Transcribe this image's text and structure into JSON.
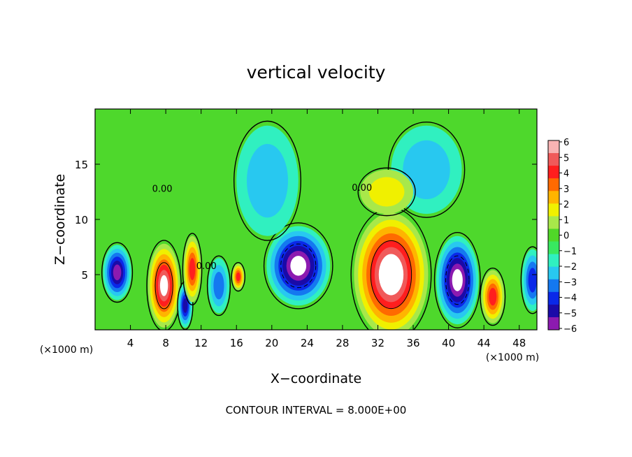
{
  "chart_data": {
    "type": "heatmap",
    "title": "vertical velocity",
    "xlabel": "X−coordinate",
    "ylabel": "Z−coordinate",
    "x_unit_left": "(×1000 m)",
    "y_unit_bottom": "(×1000 m)",
    "footer": "CONTOUR INTERVAL = 8.000E+00",
    "xlim": [
      0,
      50
    ],
    "ylim": [
      0,
      20
    ],
    "x_ticks": [
      4,
      8,
      12,
      16,
      20,
      24,
      28,
      32,
      36,
      40,
      44,
      48
    ],
    "y_ticks": [
      5,
      10,
      15
    ],
    "contour_labels": [
      {
        "text": "0.00",
        "x": 7.6,
        "y": 12.5
      },
      {
        "text": "0.00",
        "x": 12.6,
        "y": 5.5
      },
      {
        "text": "0.00",
        "x": 30.2,
        "y": 12.6
      }
    ],
    "colorbar": {
      "ticks": [
        "6",
        "5",
        "4",
        "3",
        "2",
        "1",
        "0",
        "−1",
        "−2",
        "−3",
        "−4",
        "−5",
        "−6"
      ],
      "colors": [
        "#f8b3b3",
        "#f05a5a",
        "#ff1e1e",
        "#ff6a00",
        "#ffb400",
        "#f0f000",
        "#a8e84a",
        "#50d828",
        "#38e860",
        "#30f0c0",
        "#28c8f0",
        "#1478f0",
        "#0a28e8",
        "#1a0aa8",
        "#8c1ab0"
      ]
    },
    "cells": [
      {
        "x": 2.5,
        "z": 5.2,
        "w": -5.5,
        "rx": 1.6,
        "rz": 2.5
      },
      {
        "x": 7.8,
        "z": 4.0,
        "w": 6.5,
        "rx": 1.8,
        "rz": 3.8
      },
      {
        "x": 10.2,
        "z": 2.2,
        "w": -5.0,
        "rx": 0.8,
        "rz": 2.0
      },
      {
        "x": 11.0,
        "z": 5.5,
        "w": 4.5,
        "rx": 1.0,
        "rz": 3.0
      },
      {
        "x": 16.2,
        "z": 4.8,
        "w": 4.5,
        "rx": 0.7,
        "rz": 1.2
      },
      {
        "x": 23.0,
        "z": 5.8,
        "w": -6.5,
        "rx": 3.6,
        "rz": 3.6
      },
      {
        "x": 33.5,
        "z": 5.0,
        "w": 7.5,
        "rx": 4.2,
        "rz": 5.6
      },
      {
        "x": 41.0,
        "z": 4.5,
        "w": -6.5,
        "rx": 2.4,
        "rz": 4.0
      },
      {
        "x": 45.0,
        "z": 3.0,
        "w": 5.0,
        "rx": 1.3,
        "rz": 2.4
      },
      {
        "x": 49.5,
        "z": 4.5,
        "w": -3.5,
        "rx": 1.2,
        "rz": 2.8
      },
      {
        "x": 14.0,
        "z": 4.0,
        "w": -3.0,
        "rx": 1.2,
        "rz": 2.5
      },
      {
        "x": 19.5,
        "z": 13.5,
        "w": -1.6,
        "rx": 3.5,
        "rz": 5.0
      },
      {
        "x": 37.5,
        "z": 14.5,
        "w": -1.4,
        "rx": 4.0,
        "rz": 4.0
      },
      {
        "x": 33.0,
        "z": 12.5,
        "w": 1.6,
        "rx": 3.0,
        "rz": 2.0
      }
    ]
  }
}
